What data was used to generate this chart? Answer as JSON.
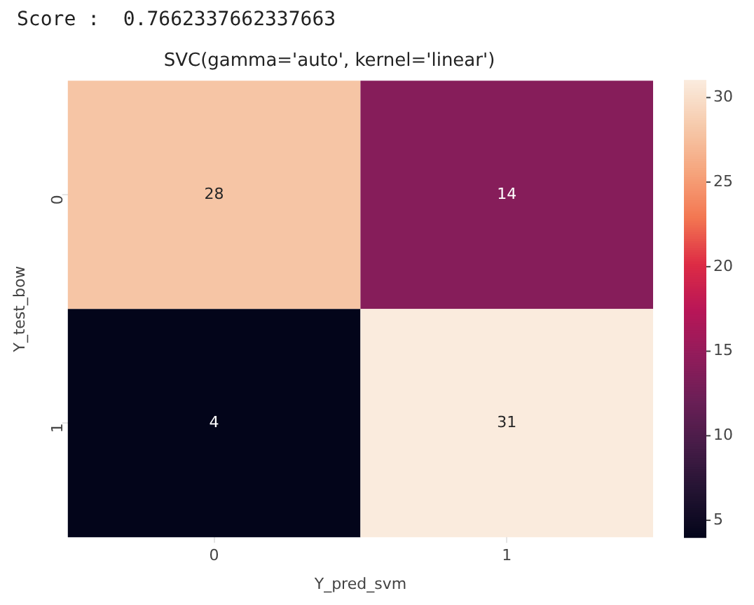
{
  "chart_data": {
    "type": "heatmap",
    "title": "SVC(gamma='auto', kernel='linear')",
    "xlabel": "Y_pred_svm",
    "ylabel": "Y_test_bow",
    "annotations": [
      "Score :  0.7662337662337663"
    ],
    "categories": [
      "0",
      "1"
    ],
    "y_categories": [
      "0",
      "1"
    ],
    "cells": [
      [
        28,
        14
      ],
      [
        4,
        31
      ]
    ],
    "data_labels": true,
    "clim": [
      4,
      31
    ],
    "cticks": [
      5,
      10,
      15,
      20,
      25,
      30
    ]
  }
}
